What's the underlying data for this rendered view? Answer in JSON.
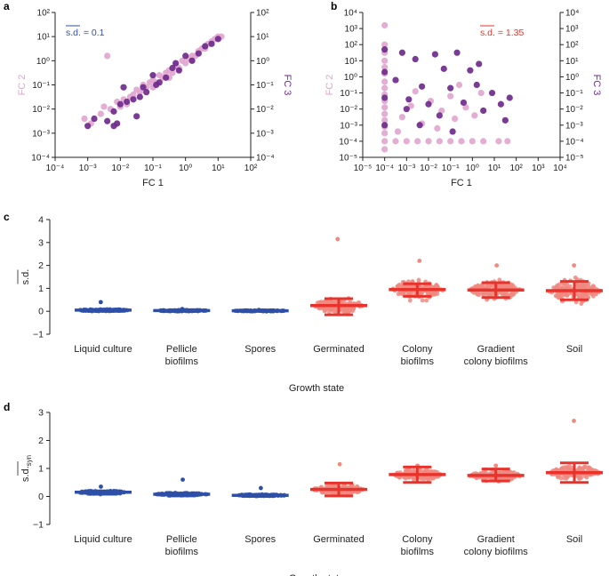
{
  "colors": {
    "pink": "#e2a6cf",
    "purple": "#6f2a8c",
    "blue": "#2d4fa8",
    "red": "#e8332c",
    "salmon": "#f08a80",
    "axis": "#222222"
  },
  "chart_data": [
    {
      "panel": "a",
      "type": "scatter",
      "xscale": "log",
      "yscale": "log",
      "xlim": [
        -4,
        2
      ],
      "ylim": [
        -4,
        2
      ],
      "xlabel": "FC 1",
      "ylabel_left": "FC 2",
      "ylabel_right": "FC 3",
      "xticks": [
        "10⁻⁴",
        "10⁻³",
        "10⁻²",
        "10⁻¹",
        "10⁰",
        "10¹",
        "10²"
      ],
      "yticks": [
        "10⁻⁴",
        "10⁻³",
        "10⁻²",
        "10⁻¹",
        "10⁰",
        "10¹",
        "10²"
      ],
      "annotation": "s.d. = 0.1",
      "annotation_color": "blue",
      "series": [
        {
          "name": "FC 2",
          "color": "pink",
          "log10_points": [
            [
              -3.1,
              -2.4
            ],
            [
              -2.9,
              -2.6
            ],
            [
              -2.6,
              -2.2
            ],
            [
              -2.5,
              -1.9
            ],
            [
              -2.3,
              -2.0
            ],
            [
              -2.1,
              -1.7
            ],
            [
              -2.0,
              -1.9
            ],
            [
              -1.9,
              -1.6
            ],
            [
              -1.7,
              -1.5
            ],
            [
              -1.6,
              -1.4
            ],
            [
              -1.5,
              -1.2
            ],
            [
              -1.4,
              -1.3
            ],
            [
              -1.3,
              -1.0
            ],
            [
              -1.2,
              -1.1
            ],
            [
              -1.1,
              -0.9
            ],
            [
              -1.0,
              -0.8
            ],
            [
              -0.9,
              -0.9
            ],
            [
              -0.8,
              -0.6
            ],
            [
              -0.7,
              -0.7
            ],
            [
              -0.6,
              -0.5
            ],
            [
              -0.5,
              -0.4
            ],
            [
              -0.4,
              -0.5
            ],
            [
              -0.3,
              -0.2
            ],
            [
              -0.2,
              -0.3
            ],
            [
              -0.1,
              0.0
            ],
            [
              0.0,
              -0.1
            ],
            [
              0.1,
              0.1
            ],
            [
              0.2,
              0.2
            ],
            [
              0.3,
              0.2
            ],
            [
              0.4,
              0.4
            ],
            [
              0.5,
              0.5
            ],
            [
              0.6,
              0.5
            ],
            [
              0.7,
              0.7
            ],
            [
              0.8,
              0.8
            ],
            [
              0.9,
              0.9
            ],
            [
              1.0,
              1.0
            ],
            [
              1.1,
              1.0
            ],
            [
              -2.4,
              0.2
            ],
            [
              -1.8,
              -1.8
            ],
            [
              -1.0,
              -1.1
            ],
            [
              -0.5,
              -0.7
            ],
            [
              0.2,
              0.0
            ]
          ]
        },
        {
          "name": "FC 3",
          "color": "purple",
          "log10_points": [
            [
              -3.0,
              -2.7
            ],
            [
              -2.8,
              -2.4
            ],
            [
              -2.4,
              -2.5
            ],
            [
              -2.2,
              -2.1
            ],
            [
              -2.0,
              -1.8
            ],
            [
              -1.8,
              -1.7
            ],
            [
              -1.6,
              -1.6
            ],
            [
              -1.4,
              -1.5
            ],
            [
              -1.3,
              -1.1
            ],
            [
              -1.2,
              -1.3
            ],
            [
              -1.0,
              -0.6
            ],
            [
              -0.9,
              -1.0
            ],
            [
              -0.8,
              -0.9
            ],
            [
              -0.6,
              -0.7
            ],
            [
              -0.4,
              -0.3
            ],
            [
              -0.2,
              -0.4
            ],
            [
              0.0,
              0.2
            ],
            [
              0.2,
              0.0
            ],
            [
              0.4,
              0.3
            ],
            [
              0.6,
              0.6
            ],
            [
              0.8,
              0.7
            ],
            [
              1.0,
              0.9
            ],
            [
              -1.9,
              -1.1
            ],
            [
              -2.1,
              -2.6
            ],
            [
              -1.5,
              -2.3
            ],
            [
              -2.2,
              -2.7
            ],
            [
              -0.3,
              -0.1
            ]
          ]
        }
      ]
    },
    {
      "panel": "b",
      "type": "scatter",
      "xscale": "log",
      "yscale": "log",
      "xlim": [
        -5,
        4
      ],
      "ylim": [
        -5,
        4
      ],
      "xlabel": "FC 1",
      "ylabel_left": "FC 2",
      "ylabel_right": "FC 3",
      "xticks": [
        "10⁻⁵",
        "10⁻⁴",
        "10⁻³",
        "10⁻²",
        "10⁻¹",
        "10⁰",
        "10¹",
        "10²",
        "10³",
        "10⁴"
      ],
      "yticks": [
        "10⁻⁵",
        "10⁻⁴",
        "10⁻³",
        "10⁻²",
        "10⁻¹",
        "10⁰",
        "10¹",
        "10²",
        "10³",
        "10⁴"
      ],
      "annotation": "s.d. = 1.35",
      "annotation_color": "red",
      "series": [
        {
          "name": "FC 2",
          "color": "pink",
          "log10_points": [
            [
              -4,
              3.2
            ],
            [
              -4,
              2.0
            ],
            [
              -4,
              1.5
            ],
            [
              -4,
              1.0
            ],
            [
              -4,
              0.6
            ],
            [
              -4,
              0.2
            ],
            [
              -4,
              -0.3
            ],
            [
              -4,
              -0.7
            ],
            [
              -4,
              -1.1
            ],
            [
              -4,
              -1.5
            ],
            [
              -4,
              -1.9
            ],
            [
              -4,
              -2.3
            ],
            [
              -4,
              -2.7
            ],
            [
              -4,
              -3.1
            ],
            [
              -4,
              -3.5
            ],
            [
              -4,
              -4.0
            ],
            [
              -4,
              -4.5
            ],
            [
              -3.5,
              -4
            ],
            [
              -3.0,
              -4
            ],
            [
              -2.5,
              -4
            ],
            [
              -2.0,
              -4
            ],
            [
              -1.5,
              -4
            ],
            [
              -1.0,
              -4
            ],
            [
              -0.5,
              -4
            ],
            [
              0.0,
              -4
            ],
            [
              0.5,
              -4
            ],
            [
              1.2,
              -4
            ],
            [
              1.6,
              -4
            ],
            [
              -3.2,
              -2.5
            ],
            [
              -2.8,
              -1.8
            ],
            [
              -2.3,
              -2.9
            ],
            [
              -1.9,
              -1.5
            ],
            [
              -1.6,
              -3.2
            ],
            [
              -1.4,
              -2.1
            ],
            [
              -1.0,
              -1.2
            ],
            [
              -0.8,
              -2.6
            ],
            [
              -0.6,
              -0.5
            ],
            [
              -0.3,
              -1.9
            ],
            [
              0.1,
              -2.4
            ],
            [
              0.4,
              -1.0
            ],
            [
              -2.6,
              -0.9
            ],
            [
              -3.4,
              -3.4
            ]
          ]
        },
        {
          "name": "FC 3",
          "color": "purple",
          "log10_points": [
            [
              -4,
              1.7
            ],
            [
              -4,
              0.3
            ],
            [
              -4,
              -1.3
            ],
            [
              -4,
              -3.0
            ],
            [
              -3.5,
              -0.2
            ],
            [
              -3.2,
              1.5
            ],
            [
              -2.9,
              -1.4
            ],
            [
              -2.6,
              1.1
            ],
            [
              -2.3,
              -0.6
            ],
            [
              -2.0,
              -1.7
            ],
            [
              -1.7,
              1.4
            ],
            [
              -1.3,
              0.5
            ],
            [
              -1.0,
              -0.7
            ],
            [
              -0.7,
              1.5
            ],
            [
              -0.4,
              -1.6
            ],
            [
              -0.1,
              0.4
            ],
            [
              0.2,
              -0.5
            ],
            [
              0.5,
              -2.1
            ],
            [
              0.9,
              -1.0
            ],
            [
              1.3,
              -1.7
            ],
            [
              1.7,
              -1.3
            ],
            [
              -1.5,
              -2.4
            ],
            [
              -2.4,
              -3.0
            ],
            [
              -0.9,
              -3.4
            ],
            [
              0.3,
              0.8
            ],
            [
              -3.0,
              -2.0
            ],
            [
              1.5,
              -2.7
            ]
          ]
        }
      ]
    },
    {
      "panel": "c",
      "type": "scatter-strip",
      "ylabel": "s.d.",
      "ylim": [
        -1,
        4
      ],
      "yticks": [
        "−1",
        "0",
        "1",
        "2",
        "3",
        "4"
      ],
      "xlabel": "Growth state",
      "categories": [
        "Liquid culture",
        "Pellicle biofilms",
        "Spores",
        "Germinated",
        "Colony biofilms",
        "Gradient colony biofilms",
        "Soil"
      ],
      "category_labels": [
        [
          "Liquid culture"
        ],
        [
          "Pellicle",
          "biofilms"
        ],
        [
          "Spores"
        ],
        [
          "Germinated"
        ],
        [
          "Colony",
          "biofilms"
        ],
        [
          "Gradient",
          "colony biofilms"
        ],
        [
          "Soil"
        ]
      ],
      "group_colors": [
        "blue",
        "blue",
        "blue",
        "red",
        "red",
        "red",
        "red"
      ],
      "means": [
        0.05,
        0.03,
        0.02,
        0.25,
        0.95,
        0.93,
        0.9
      ],
      "spread": [
        0.06,
        0.04,
        0.03,
        0.4,
        0.55,
        0.5,
        0.6
      ],
      "max_points": [
        0.4,
        0.1,
        0.06,
        3.15,
        2.2,
        2.0,
        2.0
      ],
      "error_low": [
        0.0,
        0.0,
        0.0,
        -0.15,
        0.65,
        0.6,
        0.5
      ],
      "error_high": [
        0.08,
        0.05,
        0.04,
        0.55,
        1.2,
        1.25,
        1.3
      ]
    },
    {
      "panel": "d",
      "type": "scatter-strip",
      "ylabel": "s.d.",
      "ylabel_sub": "syn",
      "ylim": [
        -1,
        3
      ],
      "yticks": [
        "−1",
        "0",
        "1",
        "2",
        "3"
      ],
      "xlabel": "Growth state",
      "categories": [
        "Liquid culture",
        "Pellicle biofilms",
        "Spores",
        "Germinated",
        "Colony biofilms",
        "Gradient colony biofilms",
        "Soil"
      ],
      "category_labels": [
        [
          "Liquid culture"
        ],
        [
          "Pellicle",
          "biofilms"
        ],
        [
          "Spores"
        ],
        [
          "Germinated"
        ],
        [
          "Colony",
          "biofilms"
        ],
        [
          "Gradient",
          "colony biofilms"
        ],
        [
          "Soil"
        ]
      ],
      "group_colors": [
        "blue",
        "blue",
        "blue",
        "red",
        "red",
        "red",
        "red"
      ],
      "means": [
        0.15,
        0.08,
        0.04,
        0.25,
        0.78,
        0.75,
        0.85
      ],
      "spread": [
        0.08,
        0.07,
        0.04,
        0.25,
        0.25,
        0.25,
        0.3
      ],
      "max_points": [
        0.35,
        0.6,
        0.3,
        1.15,
        1.1,
        1.1,
        2.7
      ],
      "error_low": [
        0.08,
        0.02,
        0.0,
        0.02,
        0.5,
        0.55,
        0.5
      ],
      "error_high": [
        0.2,
        0.12,
        0.07,
        0.48,
        1.05,
        0.98,
        1.2
      ]
    }
  ],
  "panel_labels": [
    "a",
    "b",
    "c",
    "d"
  ]
}
